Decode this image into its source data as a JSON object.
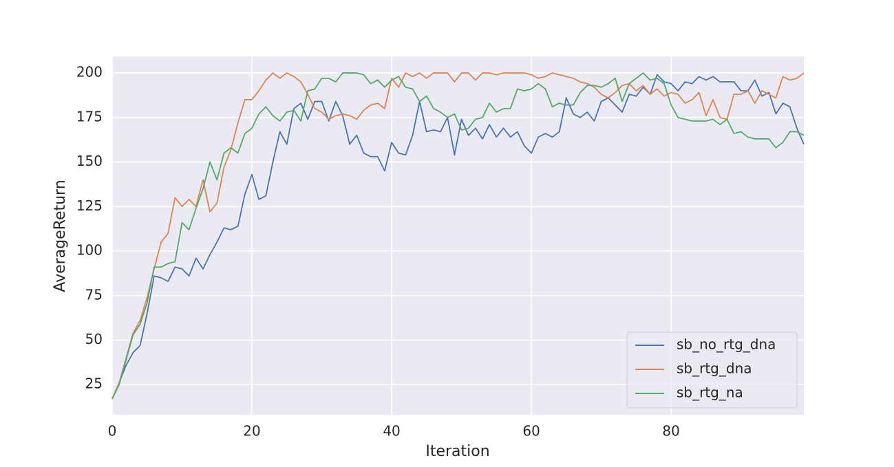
{
  "chart_data": {
    "type": "line",
    "xlabel": "Iteration",
    "ylabel": "AverageReturn",
    "xlim": [
      0,
      99
    ],
    "ylim": [
      8.1,
      209.3
    ],
    "xticks": [
      0,
      20,
      40,
      60,
      80
    ],
    "yticks": [
      25,
      50,
      75,
      100,
      125,
      150,
      175,
      200
    ],
    "grid": true,
    "legend": "lower right",
    "x": [
      0,
      1,
      2,
      3,
      4,
      5,
      6,
      7,
      8,
      9,
      10,
      11,
      12,
      13,
      14,
      15,
      16,
      17,
      18,
      19,
      20,
      21,
      22,
      23,
      24,
      25,
      26,
      27,
      28,
      29,
      30,
      31,
      32,
      33,
      34,
      35,
      36,
      37,
      38,
      39,
      40,
      41,
      42,
      43,
      44,
      45,
      46,
      47,
      48,
      49,
      50,
      51,
      52,
      53,
      54,
      55,
      56,
      57,
      58,
      59,
      60,
      61,
      62,
      63,
      64,
      65,
      66,
      67,
      68,
      69,
      70,
      71,
      72,
      73,
      74,
      75,
      76,
      77,
      78,
      79,
      80,
      81,
      82,
      83,
      84,
      85,
      86,
      87,
      88,
      89,
      90,
      91,
      92,
      93,
      94,
      95,
      96,
      97,
      98,
      99
    ],
    "series": [
      {
        "name": "sb_no_rtg_dna",
        "color": "#4c72b0",
        "values": [
          17,
          26,
          36,
          43,
          47,
          65,
          86,
          85,
          83,
          91,
          90,
          86,
          96,
          90,
          98,
          105,
          113,
          112,
          114,
          132,
          143,
          129,
          131,
          150,
          167,
          160,
          180,
          183,
          174,
          184,
          184,
          173,
          184,
          176,
          160,
          165,
          155,
          153,
          153,
          145,
          161,
          155,
          154,
          165,
          184,
          167,
          168,
          167,
          175,
          154,
          174,
          165,
          169,
          163,
          171,
          164,
          169,
          164,
          167,
          159,
          155,
          164,
          166,
          164,
          167,
          186,
          177,
          175,
          178,
          173,
          184,
          186,
          182,
          178,
          188,
          187,
          192,
          188,
          199,
          195,
          194,
          190,
          195,
          194,
          198,
          196,
          198,
          195,
          195,
          195,
          190,
          190,
          196,
          187,
          189,
          177,
          183,
          181,
          169,
          160
        ]
      },
      {
        "name": "sb_rtg_dna",
        "color": "#dd8452",
        "values": [
          17,
          26,
          40,
          54,
          61,
          74,
          90,
          105,
          110,
          130,
          125,
          129,
          125,
          140,
          122,
          127,
          147,
          157,
          172,
          185,
          185,
          190,
          196,
          200,
          197,
          200,
          198,
          195,
          188,
          180,
          178,
          174,
          176,
          177,
          176,
          174,
          179,
          182,
          183,
          180,
          197,
          192,
          200,
          198,
          200,
          197,
          200,
          200,
          200,
          195,
          200,
          200,
          196,
          200,
          200,
          199,
          200,
          200,
          200,
          200,
          199,
          197,
          198,
          200,
          199,
          198,
          197,
          195,
          194,
          192,
          188,
          186,
          189,
          193,
          194,
          190,
          193,
          188,
          191,
          187,
          189,
          188,
          183,
          185,
          189,
          176,
          185,
          175,
          174,
          188,
          188,
          190,
          183,
          190,
          188,
          186,
          198,
          196,
          197,
          200
        ]
      },
      {
        "name": "sb_rtg_na",
        "color": "#55a868",
        "values": [
          17,
          25,
          39,
          53,
          59,
          71,
          91,
          91,
          93,
          94,
          116,
          112,
          124,
          135,
          150,
          140,
          155,
          158,
          155,
          166,
          169,
          177,
          181,
          176,
          173,
          178,
          179,
          173,
          190,
          191,
          197,
          197,
          195,
          200,
          200,
          200,
          199,
          194,
          196,
          192,
          196,
          198,
          192,
          191,
          184,
          187,
          180,
          178,
          175,
          177,
          168,
          169,
          174,
          175,
          183,
          178,
          180,
          180,
          191,
          190,
          191,
          194,
          191,
          181,
          183,
          182,
          182,
          189,
          193,
          193,
          192,
          194,
          197,
          184,
          194,
          197,
          200,
          196,
          197,
          194,
          182,
          175,
          174,
          173,
          173,
          173,
          174,
          171,
          174,
          166,
          167,
          164,
          163,
          163,
          163,
          158,
          161,
          167,
          167,
          165
        ]
      }
    ]
  }
}
